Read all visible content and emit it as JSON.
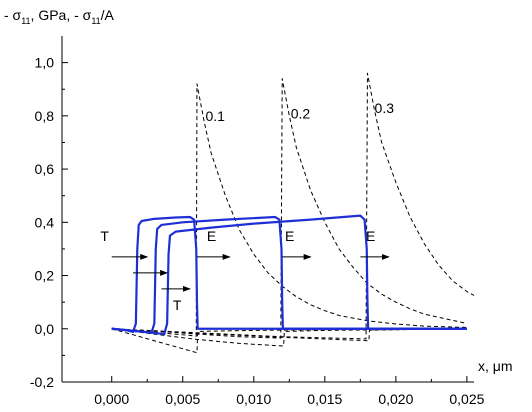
{
  "chart_data": {
    "type": "line",
    "title": "",
    "ylabel": "- σ11, GPa,  - σ11/A",
    "ylabel_parts": {
      "a": "- σ",
      "a_sub": "11",
      "b": ", GPa,  - σ",
      "b_sub": "11",
      "c": "/A"
    },
    "xlabel": "x, μm",
    "xlim": [
      -0.0035,
      0.0255
    ],
    "ylim": [
      -0.2,
      1.1
    ],
    "x_ticks": [
      0.0,
      0.005,
      0.01,
      0.015,
      0.02,
      0.025
    ],
    "x_tick_labels": [
      "0,000",
      "0,005",
      "0,010",
      "0,015",
      "0,020",
      "0,025"
    ],
    "y_ticks": [
      -0.2,
      0.0,
      0.2,
      0.4,
      0.6,
      0.8,
      1.0
    ],
    "y_tick_labels": [
      "-0,2",
      "0,0",
      "0,2",
      "0,4",
      "0,6",
      "0,8",
      "1,0"
    ],
    "colors": {
      "solid": "#1f2fd6",
      "dashed": "#000000"
    },
    "series": [
      {
        "style": "dashed",
        "label": "0.1",
        "points": [
          [
            0,
            0
          ],
          [
            0.002,
            -0.008
          ],
          [
            0.004,
            -0.018
          ],
          [
            0.0055,
            -0.025
          ],
          [
            0.00595,
            -0.028
          ],
          [
            0.006,
            0.92
          ],
          [
            0.0065,
            0.78
          ],
          [
            0.007,
            0.66
          ],
          [
            0.008,
            0.5
          ],
          [
            0.009,
            0.37
          ],
          [
            0.01,
            0.28
          ],
          [
            0.011,
            0.21
          ],
          [
            0.012,
            0.16
          ],
          [
            0.013,
            0.12
          ],
          [
            0.014,
            0.09
          ],
          [
            0.015,
            0.068
          ],
          [
            0.016,
            0.05
          ],
          [
            0.018,
            0.03
          ],
          [
            0.02,
            0.018
          ],
          [
            0.022,
            0.01
          ],
          [
            0.025,
            0.005
          ]
        ]
      },
      {
        "style": "dashed",
        "label": "0.2",
        "points": [
          [
            0,
            0
          ],
          [
            0.003,
            -0.008
          ],
          [
            0.006,
            -0.02
          ],
          [
            0.009,
            -0.03
          ],
          [
            0.0119,
            -0.035
          ],
          [
            0.012,
            0.94
          ],
          [
            0.0125,
            0.8
          ],
          [
            0.013,
            0.68
          ],
          [
            0.014,
            0.52
          ],
          [
            0.015,
            0.4
          ],
          [
            0.016,
            0.3
          ],
          [
            0.017,
            0.23
          ],
          [
            0.018,
            0.17
          ],
          [
            0.019,
            0.13
          ],
          [
            0.02,
            0.1
          ],
          [
            0.021,
            0.075
          ],
          [
            0.022,
            0.055
          ],
          [
            0.025,
            0.02
          ]
        ]
      },
      {
        "style": "dashed",
        "label": "0.3",
        "points": [
          [
            0,
            0
          ],
          [
            0.004,
            -0.01
          ],
          [
            0.008,
            -0.02
          ],
          [
            0.012,
            -0.03
          ],
          [
            0.0179,
            -0.038
          ],
          [
            0.018,
            0.96
          ],
          [
            0.0185,
            0.82
          ],
          [
            0.019,
            0.7
          ],
          [
            0.02,
            0.55
          ],
          [
            0.021,
            0.42
          ],
          [
            0.022,
            0.32
          ],
          [
            0.023,
            0.24
          ],
          [
            0.024,
            0.18
          ],
          [
            0.025,
            0.14
          ],
          [
            0.0255,
            0.125
          ]
        ]
      },
      {
        "style": "dashed",
        "label": "",
        "points": [
          [
            0,
            0
          ],
          [
            0.002,
            -0.03
          ],
          [
            0.004,
            -0.06
          ],
          [
            0.006,
            -0.09
          ],
          [
            0.00605,
            -0.01
          ],
          [
            0.008,
            -0.008
          ],
          [
            0.01,
            -0.006
          ],
          [
            0.012,
            -0.005
          ],
          [
            0.015,
            -0.003
          ],
          [
            0.02,
            -0.001
          ],
          [
            0.025,
            0
          ]
        ]
      },
      {
        "style": "dashed",
        "label": "",
        "points": [
          [
            0,
            0
          ],
          [
            0.003,
            -0.02
          ],
          [
            0.006,
            -0.04
          ],
          [
            0.009,
            -0.055
          ],
          [
            0.0121,
            -0.065
          ],
          [
            0.01215,
            -0.01
          ],
          [
            0.015,
            -0.006
          ],
          [
            0.02,
            -0.003
          ],
          [
            0.025,
            0
          ]
        ]
      },
      {
        "style": "dashed",
        "label": "",
        "points": [
          [
            0,
            0
          ],
          [
            0.004,
            -0.012
          ],
          [
            0.008,
            -0.022
          ],
          [
            0.012,
            -0.032
          ],
          [
            0.0181,
            -0.045
          ],
          [
            0.01815,
            -0.005
          ],
          [
            0.025,
            0
          ]
        ]
      },
      {
        "style": "solid",
        "label": "",
        "points": [
          [
            0,
            0
          ],
          [
            0.001,
            -0.005
          ],
          [
            0.0015,
            -0.012
          ],
          [
            0.0017,
            0.02
          ],
          [
            0.0018,
            0.3
          ],
          [
            0.0019,
            0.39
          ],
          [
            0.0021,
            0.405
          ],
          [
            0.003,
            0.413
          ],
          [
            0.0045,
            0.418
          ],
          [
            0.0055,
            0.42
          ],
          [
            0.0058,
            0.41
          ],
          [
            0.00595,
            0.3
          ],
          [
            0.006,
            0.1
          ],
          [
            0.00605,
            0
          ],
          [
            0.025,
            0
          ]
        ]
      },
      {
        "style": "solid",
        "label": "",
        "points": [
          [
            0,
            0
          ],
          [
            0.001,
            -0.005
          ],
          [
            0.002,
            -0.01
          ],
          [
            0.0028,
            -0.015
          ],
          [
            0.003,
            0.02
          ],
          [
            0.0031,
            0.3
          ],
          [
            0.0032,
            0.375
          ],
          [
            0.0035,
            0.39
          ],
          [
            0.005,
            0.4
          ],
          [
            0.008,
            0.41
          ],
          [
            0.0115,
            0.42
          ],
          [
            0.0118,
            0.41
          ],
          [
            0.01195,
            0.3
          ],
          [
            0.012,
            0.1
          ],
          [
            0.01205,
            0
          ],
          [
            0.025,
            0
          ]
        ]
      },
      {
        "style": "solid",
        "label": "",
        "points": [
          [
            0,
            0
          ],
          [
            0.001,
            -0.005
          ],
          [
            0.002,
            -0.01
          ],
          [
            0.0037,
            -0.02
          ],
          [
            0.0039,
            0.02
          ],
          [
            0.004,
            0.28
          ],
          [
            0.0041,
            0.35
          ],
          [
            0.0045,
            0.365
          ],
          [
            0.007,
            0.38
          ],
          [
            0.01,
            0.395
          ],
          [
            0.014,
            0.41
          ],
          [
            0.0175,
            0.425
          ],
          [
            0.0178,
            0.41
          ],
          [
            0.01795,
            0.3
          ],
          [
            0.018,
            0.1
          ],
          [
            0.01805,
            0
          ],
          [
            0.025,
            0
          ]
        ]
      }
    ],
    "annotations": [
      {
        "text": "0.1",
        "x": 0.0066,
        "y": 0.78
      },
      {
        "text": "0.2",
        "x": 0.0126,
        "y": 0.79
      },
      {
        "text": "0.3",
        "x": 0.0185,
        "y": 0.81
      },
      {
        "text": "T",
        "x": -0.0008,
        "y": 0.33
      },
      {
        "text": "T",
        "x": 0.0043,
        "y": 0.07
      },
      {
        "text": "E",
        "x": 0.0067,
        "y": 0.33
      },
      {
        "text": "E",
        "x": 0.0122,
        "y": 0.33
      },
      {
        "text": "E",
        "x": 0.0179,
        "y": 0.33
      }
    ],
    "arrows": [
      {
        "x1": 0.0,
        "x2": 0.0025,
        "y": 0.27
      },
      {
        "x1": 0.0015,
        "x2": 0.0039,
        "y": 0.21
      },
      {
        "x1": 0.0035,
        "x2": 0.0055,
        "y": 0.15
      },
      {
        "x1": 0.006,
        "x2": 0.0083,
        "y": 0.27
      },
      {
        "x1": 0.012,
        "x2": 0.014,
        "y": 0.27
      },
      {
        "x1": 0.0175,
        "x2": 0.0195,
        "y": 0.27
      }
    ]
  }
}
